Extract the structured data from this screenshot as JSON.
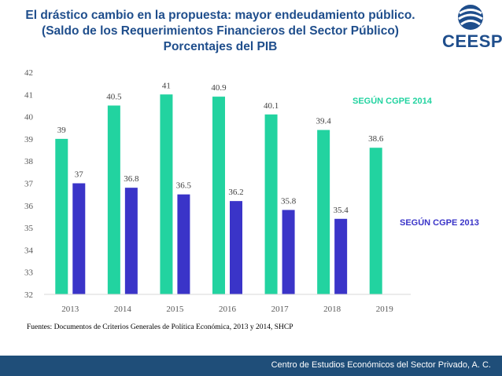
{
  "title": {
    "line1": "El drástico cambio en la propuesta: mayor endeudamiento público.",
    "line2": "(Saldo de los Requerimientos Financieros del Sector Público)",
    "line3": "Porcentajes del PIB"
  },
  "logo": {
    "text": "CEESP",
    "icon": "ceesp-logo-icon"
  },
  "source_note": "Fuentes: Documentos de Criterios Generales de Política Económica, 2013 y 2014, SHCP",
  "footer": {
    "text": "Centro de Estudios Económicos del Sector Privado, A. C."
  },
  "colors": {
    "series_2014": "#22d3a0",
    "series_2013": "#3a34c8",
    "title": "#1f4e8c",
    "footer_bg": "#1f4e79"
  },
  "chart_data": {
    "type": "bar",
    "categories": [
      "2013",
      "2014",
      "2015",
      "2016",
      "2017",
      "2018",
      "2019"
    ],
    "ylim": [
      32,
      42
    ],
    "yticks": [
      32,
      33,
      34,
      35,
      36,
      37,
      38,
      39,
      40,
      41,
      42
    ],
    "grid": false,
    "series": [
      {
        "name": "SEGÚN CGPE 2014",
        "color": "#22d3a0",
        "values": [
          39,
          40.5,
          41,
          40.9,
          40.1,
          39.4,
          38.6
        ],
        "labels": [
          "39",
          "40.5",
          "41",
          "40.9",
          "40.1",
          "39.4",
          "38.6"
        ]
      },
      {
        "name": "SEGÚN CGPE 2013",
        "color": "#3a34c8",
        "values": [
          37,
          36.8,
          36.5,
          36.2,
          35.8,
          35.4,
          null
        ],
        "labels": [
          "37",
          "36.8",
          "36.5",
          "36.2",
          "35.8",
          "35.4",
          ""
        ]
      }
    ]
  }
}
